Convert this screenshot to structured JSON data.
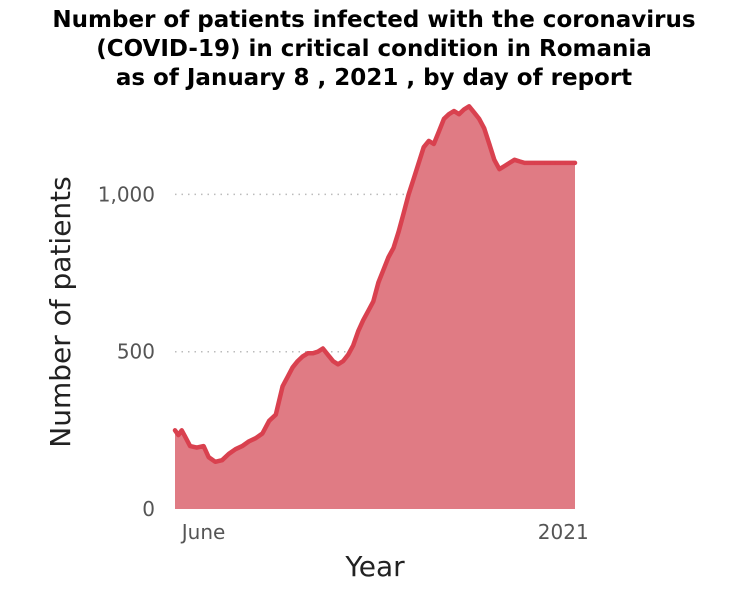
{
  "title_lines": [
    "Number of patients infected with the coronavirus",
    "(COVID-19) in critical condition in Romania",
    "as of January 8 , 2021 , by day of report"
  ],
  "chart_data": {
    "type": "area",
    "title": "Number of patients infected with the coronavirus (COVID-19) in critical condition in Romania as of January 8 , 2021 , by day of report",
    "xlabel": "Year",
    "ylabel": "Number of patients",
    "x_ticks": [
      {
        "date": "2020-06-01",
        "label": "June"
      },
      {
        "date": "2021-01-01",
        "label": "2021"
      }
    ],
    "y_ticks": [
      {
        "value": 0,
        "label": "0"
      },
      {
        "value": 500,
        "label": "500"
      },
      {
        "value": 1000,
        "label": "1,000"
      }
    ],
    "xlim": [
      "2020-05-15",
      "2021-01-08"
    ],
    "ylim": [
      0,
      1300
    ],
    "grid": "horizontal dotted",
    "colors": {
      "line": "#d9414f",
      "fill": "#e07b84"
    },
    "series": [
      {
        "x": [
          "2020-05-15",
          "2020-05-17",
          "2020-05-19",
          "2020-05-21",
          "2020-05-24",
          "2020-05-28",
          "2020-06-01",
          "2020-06-04",
          "2020-06-08",
          "2020-06-12",
          "2020-06-16",
          "2020-06-20",
          "2020-06-24",
          "2020-06-28",
          "2020-07-02",
          "2020-07-06",
          "2020-07-10",
          "2020-07-14",
          "2020-07-18",
          "2020-07-21",
          "2020-07-24",
          "2020-07-27",
          "2020-07-30",
          "2020-08-02",
          "2020-08-05",
          "2020-08-08",
          "2020-08-11",
          "2020-08-14",
          "2020-08-17",
          "2020-08-20",
          "2020-08-23",
          "2020-08-26",
          "2020-08-29",
          "2020-09-01",
          "2020-09-04",
          "2020-09-07",
          "2020-09-10",
          "2020-09-13",
          "2020-09-16",
          "2020-09-19",
          "2020-09-22",
          "2020-09-25",
          "2020-09-28",
          "2020-10-01",
          "2020-10-04",
          "2020-10-07",
          "2020-10-10",
          "2020-10-13",
          "2020-10-16",
          "2020-10-19",
          "2020-10-22",
          "2020-10-25",
          "2020-10-28",
          "2020-10-31",
          "2020-11-03",
          "2020-11-06",
          "2020-11-09",
          "2020-11-12",
          "2020-11-15",
          "2020-11-18",
          "2020-11-21",
          "2020-11-24",
          "2020-11-27",
          "2020-11-30",
          "2020-12-03",
          "2020-12-06",
          "2020-12-09",
          "2020-12-12",
          "2020-12-15",
          "2020-12-18",
          "2020-12-21",
          "2020-12-24",
          "2020-12-27",
          "2020-12-30",
          "2021-01-02",
          "2021-01-05",
          "2021-01-08"
        ],
        "values": [
          250,
          235,
          250,
          230,
          200,
          195,
          200,
          165,
          150,
          155,
          175,
          190,
          200,
          215,
          225,
          240,
          280,
          300,
          390,
          420,
          450,
          470,
          485,
          495,
          495,
          500,
          510,
          490,
          470,
          460,
          470,
          490,
          520,
          565,
          600,
          630,
          660,
          720,
          760,
          800,
          830,
          880,
          940,
          1000,
          1050,
          1100,
          1150,
          1170,
          1160,
          1200,
          1240,
          1255,
          1265,
          1255,
          1270,
          1280,
          1260,
          1240,
          1210,
          1160,
          1110,
          1080,
          1090,
          1100,
          1110,
          1105,
          1100,
          1100,
          1100,
          1100,
          1100,
          1100,
          1100,
          1100,
          1100,
          1100,
          1100
        ]
      }
    ]
  }
}
